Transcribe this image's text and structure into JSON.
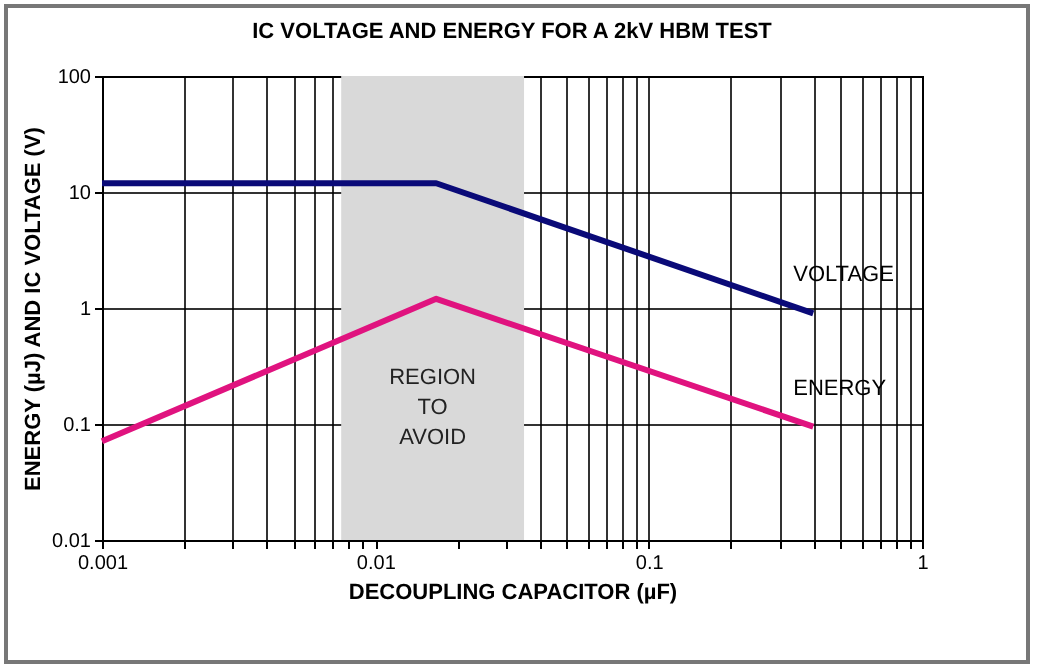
{
  "chart_data": {
    "type": "line",
    "title": "IC VOLTAGE AND ENERGY FOR A 2kV HBM TEST",
    "xlabel": "DECOUPLING CAPACITOR (µF)",
    "ylabel": "ENERGY (µJ) AND IC VOLTAGE (V)",
    "x": [
      0.001,
      0.0167,
      0.4
    ],
    "series": [
      {
        "name": "VOLTAGE",
        "color": "#0a0a78",
        "values": [
          11.9,
          11.9,
          0.9
        ]
      },
      {
        "name": "ENERGY",
        "color": "#e0137f",
        "values": [
          0.071,
          1.2,
          0.095
        ]
      }
    ],
    "log": "xy",
    "grid": true,
    "xlim": [
      0.001,
      1
    ],
    "ylim": [
      0.01,
      100
    ],
    "xticks": [
      0.001,
      {
        "value": 0.002,
        "label": null
      },
      {
        "value": 0.003,
        "label": null
      },
      {
        "value": 0.004,
        "label": null
      },
      {
        "value": 0.005,
        "label": null
      },
      {
        "value": 0.006,
        "label": null
      },
      {
        "value": 0.007,
        "label": null
      },
      {
        "value": 0.008,
        "label": null
      },
      {
        "value": 0.009,
        "label": null
      },
      0.01,
      {
        "value": 0.02,
        "label": null
      },
      {
        "value": 0.03,
        "label": null
      },
      {
        "value": 0.04,
        "label": null
      },
      {
        "value": 0.05,
        "label": null
      },
      {
        "value": 0.06,
        "label": null
      },
      {
        "value": 0.07,
        "label": null
      },
      {
        "value": 0.08,
        "label": null
      },
      {
        "value": 0.09,
        "label": null
      },
      0.1,
      {
        "value": 0.2,
        "label": null
      },
      {
        "value": 0.3,
        "label": null
      },
      {
        "value": 0.4,
        "label": null
      },
      {
        "value": 0.5,
        "label": null
      },
      {
        "value": 0.6,
        "label": null
      },
      {
        "value": 0.7,
        "label": null
      },
      {
        "value": 0.8,
        "label": null
      },
      {
        "value": 0.9,
        "label": null
      },
      1
    ],
    "yticks": [
      0.01,
      0.1,
      1,
      10,
      100
    ],
    "bands": [
      {
        "axis": "x",
        "from": 0.0075,
        "to": 0.035,
        "label": "REGION TO AVOID",
        "color": "#d9d9d9"
      }
    ],
    "marker": "none"
  }
}
